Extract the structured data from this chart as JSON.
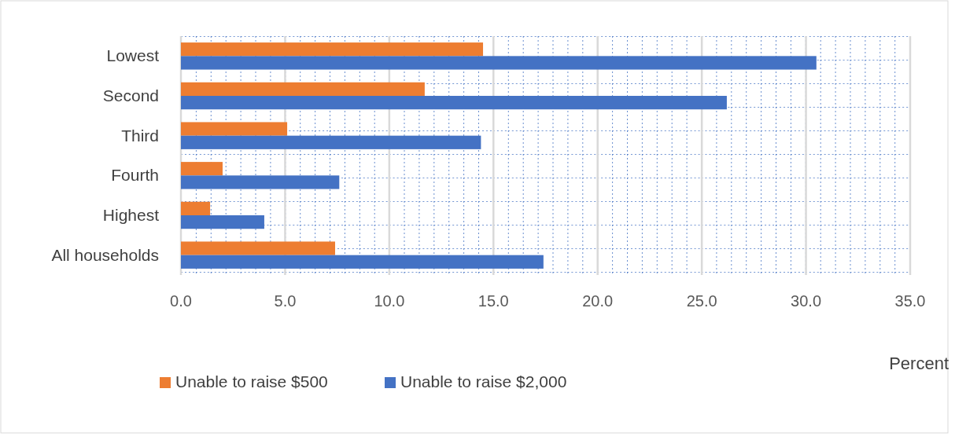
{
  "chart_data": {
    "type": "bar",
    "orientation": "horizontal",
    "categories": [
      "Lowest",
      "Second",
      "Third",
      "Fourth",
      "Highest",
      "All households"
    ],
    "series": [
      {
        "name": "Unable to raise $500",
        "color": "#ed7d31",
        "values": [
          14.5,
          11.7,
          5.1,
          2.0,
          1.4,
          7.4
        ]
      },
      {
        "name": "Unable to raise $2,000",
        "color": "#4472c4",
        "values": [
          30.5,
          26.2,
          14.4,
          7.6,
          4.0,
          17.4
        ]
      }
    ],
    "xlim": [
      0,
      35
    ],
    "xticks": [
      {
        "value": 0,
        "label": "0.0"
      },
      {
        "value": 5,
        "label": "5.0"
      },
      {
        "value": 10,
        "label": "10.0"
      },
      {
        "value": 15,
        "label": "15.0"
      },
      {
        "value": 20,
        "label": "20.0"
      },
      {
        "value": 25,
        "label": "25.0"
      },
      {
        "value": 30,
        "label": "30.0"
      },
      {
        "value": 35,
        "label": "35.0"
      }
    ],
    "xlabel": "Percent",
    "grid": "x",
    "legend": "bottom"
  }
}
